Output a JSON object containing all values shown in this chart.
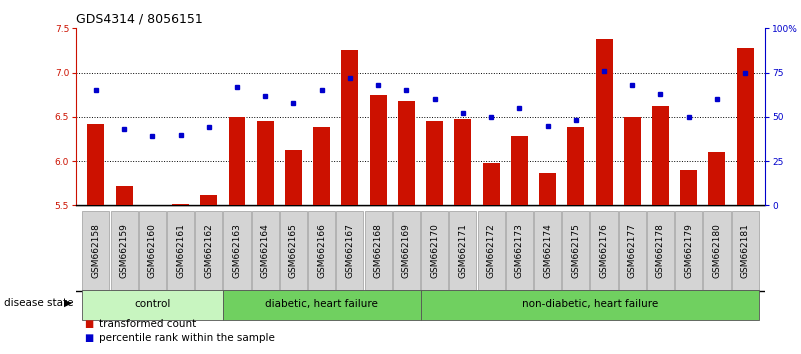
{
  "title": "GDS4314 / 8056151",
  "samples": [
    "GSM662158",
    "GSM662159",
    "GSM662160",
    "GSM662161",
    "GSM662162",
    "GSM662163",
    "GSM662164",
    "GSM662165",
    "GSM662166",
    "GSM662167",
    "GSM662168",
    "GSM662169",
    "GSM662170",
    "GSM662171",
    "GSM662172",
    "GSM662173",
    "GSM662174",
    "GSM662175",
    "GSM662176",
    "GSM662177",
    "GSM662178",
    "GSM662179",
    "GSM662180",
    "GSM662181"
  ],
  "bar_values": [
    6.42,
    5.72,
    5.5,
    5.52,
    5.62,
    6.5,
    6.45,
    6.12,
    6.38,
    7.25,
    6.75,
    6.68,
    6.45,
    6.48,
    5.98,
    6.28,
    5.86,
    6.38,
    7.38,
    6.5,
    6.62,
    5.9,
    6.1,
    7.28
  ],
  "percentile_values": [
    65,
    43,
    39,
    40,
    44,
    67,
    62,
    58,
    65,
    72,
    68,
    65,
    60,
    52,
    50,
    55,
    45,
    48,
    76,
    68,
    63,
    50,
    60,
    75
  ],
  "ylim_left": [
    5.5,
    7.5
  ],
  "ylim_right": [
    0,
    100
  ],
  "yticks_left": [
    5.5,
    6.0,
    6.5,
    7.0,
    7.5
  ],
  "yticks_right": [
    0,
    25,
    50,
    75,
    100
  ],
  "ytick_labels_right": [
    "0",
    "25",
    "50",
    "75",
    "100%"
  ],
  "grid_lines": [
    6.0,
    6.5,
    7.0
  ],
  "bar_color": "#cc1100",
  "dot_color": "#0000cc",
  "bg_color": "#ffffff",
  "xticklabel_bg": "#d4d4d4",
  "groups_info": [
    {
      "start": 0,
      "end": 4,
      "label": "control",
      "color": "#c8f5c0"
    },
    {
      "start": 5,
      "end": 11,
      "label": "diabetic, heart failure",
      "color": "#70d060"
    },
    {
      "start": 12,
      "end": 23,
      "label": "non-diabetic, heart failure",
      "color": "#70d060"
    }
  ],
  "disease_state_label": "disease state",
  "legend_items": [
    {
      "label": "transformed count",
      "color": "#cc1100"
    },
    {
      "label": "percentile rank within the sample",
      "color": "#0000cc"
    }
  ],
  "title_fontsize": 9,
  "tick_fontsize": 6.5,
  "group_fontsize": 7.5,
  "legend_fontsize": 7.5
}
